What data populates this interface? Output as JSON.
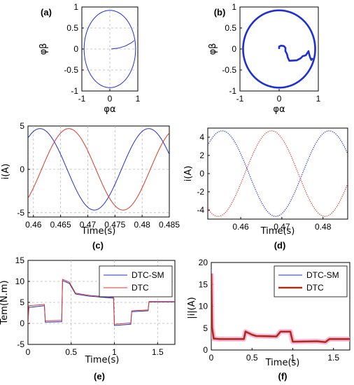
{
  "colors": {
    "blue": "#1f2fd8",
    "red": "#d83a2a",
    "dark_red": "#b22a12",
    "pink_band": "#f2a6d6",
    "grid": "#b8b8b8"
  },
  "chart_data": [
    {
      "id": "a",
      "panel_label": "(a)",
      "type": "line",
      "xlabel": "φα",
      "ylabel": "φβ",
      "xlim": [
        -1,
        1
      ],
      "ylim": [
        -1,
        1
      ],
      "xticks": [
        -1,
        0,
        1
      ],
      "yticks": [
        -1,
        -0.5,
        0,
        0.5,
        1
      ],
      "xtick_labels": [
        "-1",
        "0",
        "1"
      ],
      "ytick_labels": [
        "-1",
        "-0.5",
        "0",
        "0.5",
        "1"
      ],
      "grid": true,
      "series": [
        {
          "color": "blue",
          "kind": "circle",
          "radius": 0.92
        },
        {
          "color": "blue",
          "kind": "path",
          "points": [
            [
              0.05,
              0
            ],
            [
              0.3,
              0.02
            ],
            [
              0.55,
              0.07
            ],
            [
              0.75,
              0.14
            ],
            [
              0.87,
              0.2
            ]
          ]
        }
      ]
    },
    {
      "id": "b",
      "panel_label": "(b)",
      "type": "line",
      "xlabel": "φα",
      "ylabel": "φβ",
      "xlim": [
        -1,
        1
      ],
      "ylim": [
        -1,
        1
      ],
      "xticks": [
        -1,
        0,
        1
      ],
      "yticks": [
        -1,
        -0.5,
        0,
        0.5,
        1
      ],
      "xtick_labels": [
        "-1",
        "0",
        "1"
      ],
      "ytick_labels": [
        "-1",
        "-0.5",
        "0",
        "0.5",
        "1"
      ],
      "grid": false,
      "series": [
        {
          "color": "blue",
          "kind": "circle",
          "radius": 0.92,
          "thick": true
        },
        {
          "color": "blue",
          "kind": "path",
          "thick": true,
          "points": [
            [
              0,
              0
            ],
            [
              0,
              0.06
            ],
            [
              0.05,
              0.08
            ],
            [
              0.12,
              0.07
            ],
            [
              0.16,
              0.03
            ],
            [
              0.16,
              -0.05
            ],
            [
              0.2,
              -0.12
            ],
            [
              0.22,
              -0.2
            ],
            [
              0.26,
              -0.28
            ],
            [
              0.45,
              -0.27
            ],
            [
              0.55,
              -0.22
            ],
            [
              0.6,
              -0.17
            ],
            [
              0.68,
              -0.15
            ],
            [
              0.73,
              -0.08
            ],
            [
              0.75,
              -0.05
            ],
            [
              0.76,
              -0.1
            ],
            [
              0.79,
              -0.2
            ],
            [
              0.82,
              -0.26
            ],
            [
              0.86,
              -0.22
            ]
          ]
        }
      ]
    },
    {
      "id": "c",
      "panel_label": "(c)",
      "type": "line",
      "xlabel": "Time(s)",
      "ylabel": "i(A)",
      "xlim": [
        0.459,
        0.485
      ],
      "ylim": [
        -5.5,
        5
      ],
      "xticks": [
        0.46,
        0.465,
        0.47,
        0.475,
        0.48,
        0.485
      ],
      "yticks": [
        -5,
        0,
        5
      ],
      "xtick_labels": [
        "0.46",
        "0.465",
        "0.47",
        "0.475",
        "0.48",
        "0.485"
      ],
      "ytick_labels": [
        "-5",
        "0",
        "5"
      ],
      "grid": true,
      "series": [
        {
          "color": "blue",
          "kind": "sine",
          "amplitude": 4.7,
          "period": 0.02,
          "peak_at": 0.4612
        },
        {
          "color": "red",
          "kind": "sine",
          "amplitude": 4.7,
          "period": 0.02,
          "peak_at": 0.4665
        }
      ]
    },
    {
      "id": "d",
      "panel_label": "(d)",
      "type": "line",
      "xlabel": "Time(s)",
      "ylabel": "i(A)",
      "xlim": [
        0.452,
        0.486
      ],
      "ylim": [
        -5,
        5
      ],
      "xticks": [
        0.46,
        0.47,
        0.48
      ],
      "yticks": [
        -4,
        -2,
        0,
        2,
        4
      ],
      "xtick_labels": [
        "0.46",
        "0.47",
        "0.48"
      ],
      "ytick_labels": [
        "-4",
        "-2",
        "0",
        "2",
        "4"
      ],
      "grid": false,
      "series": [
        {
          "color": "blue",
          "kind": "sine",
          "amplitude": 4.7,
          "period": 0.026,
          "peak_at": 0.4555,
          "dotted": true
        },
        {
          "color": "red",
          "kind": "sine",
          "amplitude": 4.7,
          "period": 0.026,
          "peak_at": 0.4675,
          "dotted": true
        }
      ]
    },
    {
      "id": "e",
      "panel_label": "(e)",
      "type": "line",
      "xlabel": "Time(s)",
      "ylabel": "Tem(N.m)",
      "xlim": [
        0,
        1.7
      ],
      "ylim": [
        -5,
        15
      ],
      "xticks": [
        0,
        0.5,
        1,
        1.5
      ],
      "yticks": [
        -5,
        0,
        5,
        10,
        15
      ],
      "xtick_labels": [
        "0",
        "0.5",
        "1",
        "1.5"
      ],
      "ytick_labels": [
        "-5",
        "0",
        "5",
        "10",
        "15"
      ],
      "grid": true,
      "legend": [
        "DTC-SM",
        "DTC"
      ],
      "legend_position": "top-right",
      "series": [
        {
          "name": "DTC-SM",
          "color": "blue",
          "kind": "path",
          "points": [
            [
              0,
              0
            ],
            [
              0.01,
              3.8
            ],
            [
              0.19,
              4.2
            ],
            [
              0.2,
              0.3
            ],
            [
              0.39,
              0.4
            ],
            [
              0.4,
              10.2
            ],
            [
              0.48,
              9.5
            ],
            [
              0.55,
              7.0
            ],
            [
              0.7,
              6.5
            ],
            [
              0.99,
              6.0
            ],
            [
              1.0,
              -0.5
            ],
            [
              1.19,
              -0.2
            ],
            [
              1.2,
              2.8
            ],
            [
              1.39,
              3.0
            ],
            [
              1.4,
              5.1
            ],
            [
              1.7,
              5.1
            ]
          ]
        },
        {
          "name": "DTC",
          "color": "red",
          "kind": "path",
          "points": [
            [
              0,
              0
            ],
            [
              0.01,
              4.2
            ],
            [
              0.19,
              4.5
            ],
            [
              0.2,
              0.6
            ],
            [
              0.39,
              0.7
            ],
            [
              0.4,
              10.5
            ],
            [
              0.48,
              9.8
            ],
            [
              0.55,
              7.2
            ],
            [
              0.7,
              6.7
            ],
            [
              0.99,
              6.2
            ],
            [
              1.0,
              -0.2
            ],
            [
              1.19,
              0.1
            ],
            [
              1.2,
              3.0
            ],
            [
              1.39,
              3.2
            ],
            [
              1.4,
              5.2
            ],
            [
              1.7,
              5.2
            ]
          ]
        }
      ]
    },
    {
      "id": "f",
      "panel_label": "(f)",
      "type": "line",
      "xlabel": "Time(s)",
      "ylabel": "|i|(A)",
      "xlim": [
        0,
        1.7
      ],
      "ylim": [
        0,
        20
      ],
      "xticks": [
        0,
        0.5,
        1,
        1.5
      ],
      "yticks": [
        0,
        5,
        10,
        15,
        20
      ],
      "xtick_labels": [
        "0",
        "0.5",
        "1",
        "1.5"
      ],
      "ytick_labels": [
        "0",
        "5",
        "10",
        "15",
        "20"
      ],
      "grid": false,
      "legend": [
        "DTC-SM",
        "DTC"
      ],
      "legend_position": "top-right",
      "series": [
        {
          "name": "DTC-SM",
          "color": "blue",
          "kind": "path",
          "points": [
            [
              0,
              18.5
            ],
            [
              0.01,
              6
            ],
            [
              0.03,
              2.8
            ],
            [
              0.1,
              2.6
            ],
            [
              0.2,
              2.6
            ],
            [
              0.4,
              2.6
            ],
            [
              0.42,
              4.4
            ],
            [
              0.5,
              3.6
            ],
            [
              0.55,
              3.3
            ],
            [
              0.8,
              3.2
            ],
            [
              0.85,
              4.3
            ],
            [
              0.97,
              4.3
            ],
            [
              1.0,
              2.0
            ],
            [
              1.3,
              2.1
            ],
            [
              1.4,
              1.9
            ],
            [
              1.45,
              2.6
            ],
            [
              1.7,
              2.6
            ]
          ]
        },
        {
          "name": "DTC",
          "color": "dark_red",
          "kind": "path",
          "band": 0.6,
          "points": [
            [
              0,
              17.5
            ],
            [
              0.01,
              5
            ],
            [
              0.03,
              2.6
            ],
            [
              0.1,
              2.5
            ],
            [
              0.2,
              2.5
            ],
            [
              0.4,
              2.5
            ],
            [
              0.42,
              4.2
            ],
            [
              0.5,
              3.5
            ],
            [
              0.55,
              3.2
            ],
            [
              0.8,
              3.1
            ],
            [
              0.85,
              4.2
            ],
            [
              0.97,
              4.2
            ],
            [
              1.0,
              1.9
            ],
            [
              1.3,
              2.0
            ],
            [
              1.4,
              1.8
            ],
            [
              1.45,
              2.5
            ],
            [
              1.7,
              2.5
            ]
          ]
        }
      ]
    }
  ]
}
